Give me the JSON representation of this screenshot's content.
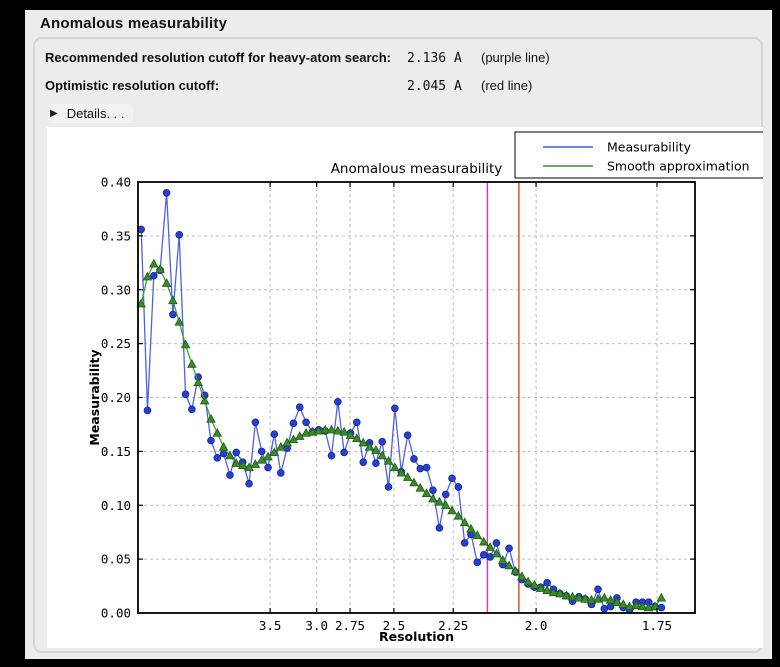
{
  "window": {
    "title": "Anomalous measurability"
  },
  "info_rows": [
    {
      "label": "Recommended resolution cutoff for heavy-atom search:",
      "value": "2.136 A",
      "note": "(purple line)"
    },
    {
      "label": "Optimistic resolution cutoff:",
      "value": "2.045 A",
      "note": "(red line)"
    }
  ],
  "details": {
    "label": "Details. . ."
  },
  "chart_data": {
    "type": "line",
    "title": "Anomalous measurability",
    "xlabel": "Resolution",
    "ylabel": "Measurability",
    "grid": true,
    "x_axis": {
      "scale": "1_over_d_squared",
      "range_invdsq": [
        -0.002,
        0.3506
      ],
      "tick_d_values": [
        3.5,
        3.0,
        2.75,
        2.5,
        2.25,
        2.0,
        1.75
      ],
      "tick_labels": [
        "3.5",
        "3.0",
        "2.75",
        "2.5",
        "2.25",
        "2.0",
        "1.75"
      ]
    },
    "y_axis": {
      "range": [
        0.0,
        0.4
      ],
      "tick_values": [
        0.0,
        0.05,
        0.1,
        0.15,
        0.2,
        0.25,
        0.3,
        0.35,
        0.4
      ],
      "tick_labels": [
        "0.00",
        "0.05",
        "0.10",
        "0.15",
        "0.20",
        "0.25",
        "0.30",
        "0.35",
        "0.40"
      ]
    },
    "x_invdsq": [
      0.0,
      0.004,
      0.008,
      0.012,
      0.0161,
      0.0201,
      0.0241,
      0.0281,
      0.0321,
      0.0361,
      0.0402,
      0.0442,
      0.0482,
      0.0522,
      0.0562,
      0.0602,
      0.0643,
      0.0683,
      0.0723,
      0.0763,
      0.0803,
      0.0843,
      0.0884,
      0.0924,
      0.0964,
      0.1004,
      0.1044,
      0.1084,
      0.1124,
      0.1165,
      0.1205,
      0.1245,
      0.1285,
      0.1325,
      0.1365,
      0.1406,
      0.1446,
      0.1486,
      0.1526,
      0.1566,
      0.1606,
      0.1647,
      0.1687,
      0.1727,
      0.1767,
      0.1807,
      0.1847,
      0.1888,
      0.1928,
      0.1968,
      0.2008,
      0.2048,
      0.2088,
      0.2128,
      0.2169,
      0.2209,
      0.2249,
      0.2289,
      0.2329,
      0.2369,
      0.241,
      0.245,
      0.249,
      0.253,
      0.257,
      0.261,
      0.2651,
      0.2691,
      0.2731,
      0.2771,
      0.2811,
      0.2851,
      0.2892,
      0.2932,
      0.2972,
      0.3012,
      0.3052,
      0.3092,
      0.3133,
      0.3173,
      0.3213,
      0.3253,
      0.3293
    ],
    "series": [
      {
        "name": "Measurability",
        "marker": "circle",
        "line_color": "#5061e2",
        "marker_color": "#2440d8",
        "marker_edge": "#16277f",
        "values": [
          0.356,
          0.188,
          0.313,
          0.318,
          0.39,
          0.277,
          0.351,
          0.203,
          0.189,
          0.219,
          0.202,
          0.16,
          0.144,
          0.148,
          0.128,
          0.149,
          0.14,
          0.12,
          0.177,
          0.15,
          0.135,
          0.166,
          0.13,
          0.153,
          0.176,
          0.191,
          0.177,
          0.168,
          0.17,
          0.169,
          0.146,
          0.196,
          0.149,
          0.167,
          0.177,
          0.14,
          0.158,
          0.139,
          0.159,
          0.117,
          0.19,
          0.131,
          0.165,
          0.143,
          0.134,
          0.135,
          0.114,
          0.079,
          0.11,
          0.125,
          0.117,
          0.065,
          0.073,
          0.047,
          0.054,
          0.052,
          0.065,
          0.045,
          0.06,
          0.038,
          0.031,
          0.027,
          0.024,
          0.024,
          0.028,
          0.022,
          0.018,
          0.016,
          0.011,
          0.015,
          0.013,
          0.008,
          0.022,
          0.004,
          0.006,
          0.014,
          0.005,
          0.003,
          0.01,
          0.01,
          0.01,
          0.006,
          0.005
        ]
      },
      {
        "name": "Smooth approximation",
        "marker": "triangle",
        "line_color": "#4a9e3a",
        "marker_color": "#388c2a",
        "marker_edge": "#1f5c12",
        "values": [
          0.287,
          0.312,
          0.324,
          0.319,
          0.306,
          0.29,
          0.27,
          0.249,
          0.231,
          0.214,
          0.197,
          0.18,
          0.167,
          0.154,
          0.146,
          0.139,
          0.137,
          0.135,
          0.138,
          0.142,
          0.145,
          0.149,
          0.154,
          0.158,
          0.161,
          0.164,
          0.167,
          0.168,
          0.169,
          0.17,
          0.17,
          0.169,
          0.168,
          0.165,
          0.162,
          0.158,
          0.154,
          0.151,
          0.146,
          0.141,
          0.135,
          0.13,
          0.126,
          0.121,
          0.116,
          0.111,
          0.106,
          0.103,
          0.1,
          0.095,
          0.09,
          0.084,
          0.078,
          0.072,
          0.066,
          0.061,
          0.055,
          0.049,
          0.044,
          0.039,
          0.034,
          0.029,
          0.026,
          0.023,
          0.021,
          0.019,
          0.018,
          0.016,
          0.015,
          0.014,
          0.013,
          0.012,
          0.013,
          0.014,
          0.012,
          0.01,
          0.008,
          0.006,
          0.007,
          0.006,
          0.005,
          0.006,
          0.014
        ]
      }
    ],
    "vlines": [
      {
        "name": "purple line",
        "resolution_A": 2.136,
        "color": "#d234d2"
      },
      {
        "name": "red line",
        "resolution_A": 2.045,
        "color": "#dc4a12"
      }
    ],
    "legend": {
      "position": "top-right",
      "entries": [
        {
          "label": "Measurability",
          "color": "#4553df"
        },
        {
          "label": "Smooth approximation",
          "color": "#3d8f2f"
        }
      ]
    },
    "colors": {
      "grid": "#bdbdbd",
      "frame": "#000000",
      "figure_bg": "#ffffff"
    }
  }
}
